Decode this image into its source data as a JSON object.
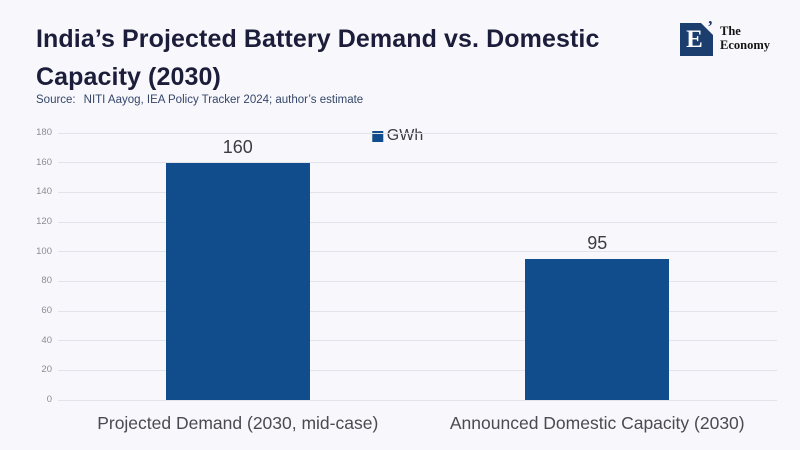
{
  "header": {
    "title": "India’s Projected Battery Demand vs. Domestic Capacity (2030)",
    "source_label": "Source:",
    "source_text": "NITI Aayog, IEA Policy Tracker 2024; author’s estimate"
  },
  "brand": {
    "logo_letter": "E",
    "logo_quote": "’",
    "name_line1": "The",
    "name_line2": "Economy",
    "logo_color": "#1c3e6e"
  },
  "chart_data": {
    "type": "bar",
    "title": "India’s Projected Battery Demand vs. Domestic Capacity (2030)",
    "categories": [
      "Projected Demand (2030, mid-case)",
      "Announced Domestic Capacity (2030)"
    ],
    "values": [
      160,
      95
    ],
    "value_labels": [
      "160",
      "95"
    ],
    "legend": {
      "label": "GWh",
      "position": "top-center"
    },
    "ylim": [
      0,
      180
    ],
    "yticks": [
      0,
      20,
      40,
      60,
      80,
      100,
      120,
      140,
      160,
      180
    ],
    "grid": true,
    "bar_color": "#114d8c",
    "xlabel": "",
    "ylabel": ""
  }
}
